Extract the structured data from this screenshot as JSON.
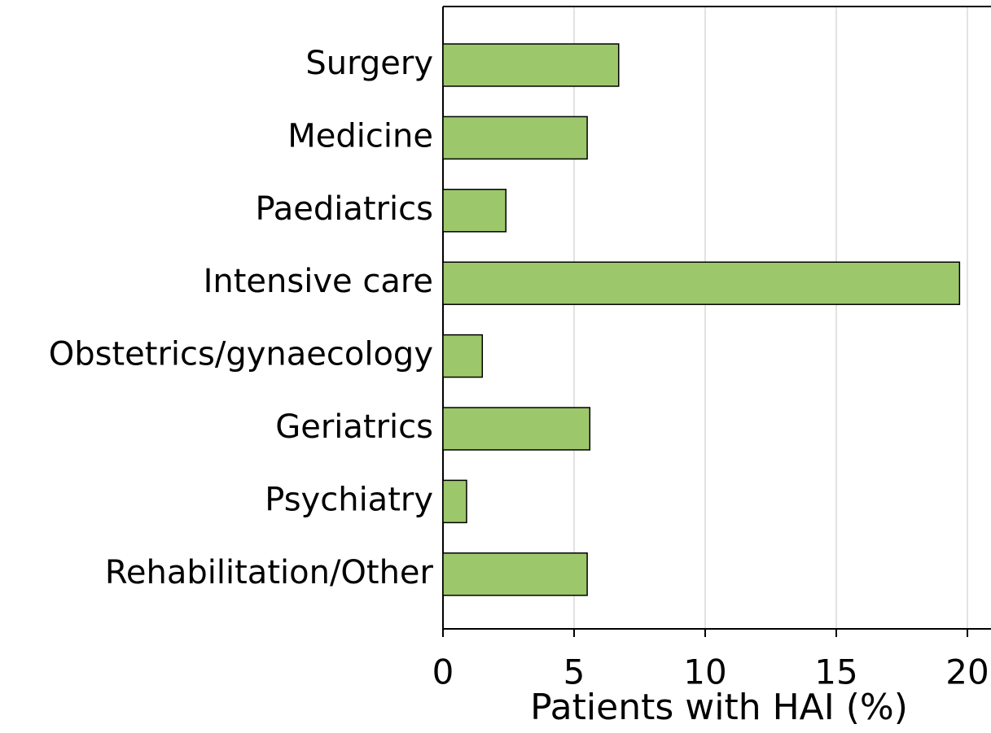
{
  "chart_data": {
    "type": "bar",
    "orientation": "horizontal",
    "x_label": "Patients with HAI (%)",
    "categories": [
      "Surgery",
      "Medicine",
      "Paediatrics",
      "Intensive care",
      "Obstetrics/gynaecology",
      "Geriatrics",
      "Psychiatry",
      "Rehabilitation/Other"
    ],
    "values": [
      6.7,
      5.5,
      2.4,
      19.7,
      1.5,
      5.6,
      0.9,
      5.5
    ],
    "color": "#9dc76b",
    "xlim": [
      0,
      20.9
    ],
    "xticks": [
      0,
      5,
      10,
      15,
      20
    ],
    "grid": true
  }
}
